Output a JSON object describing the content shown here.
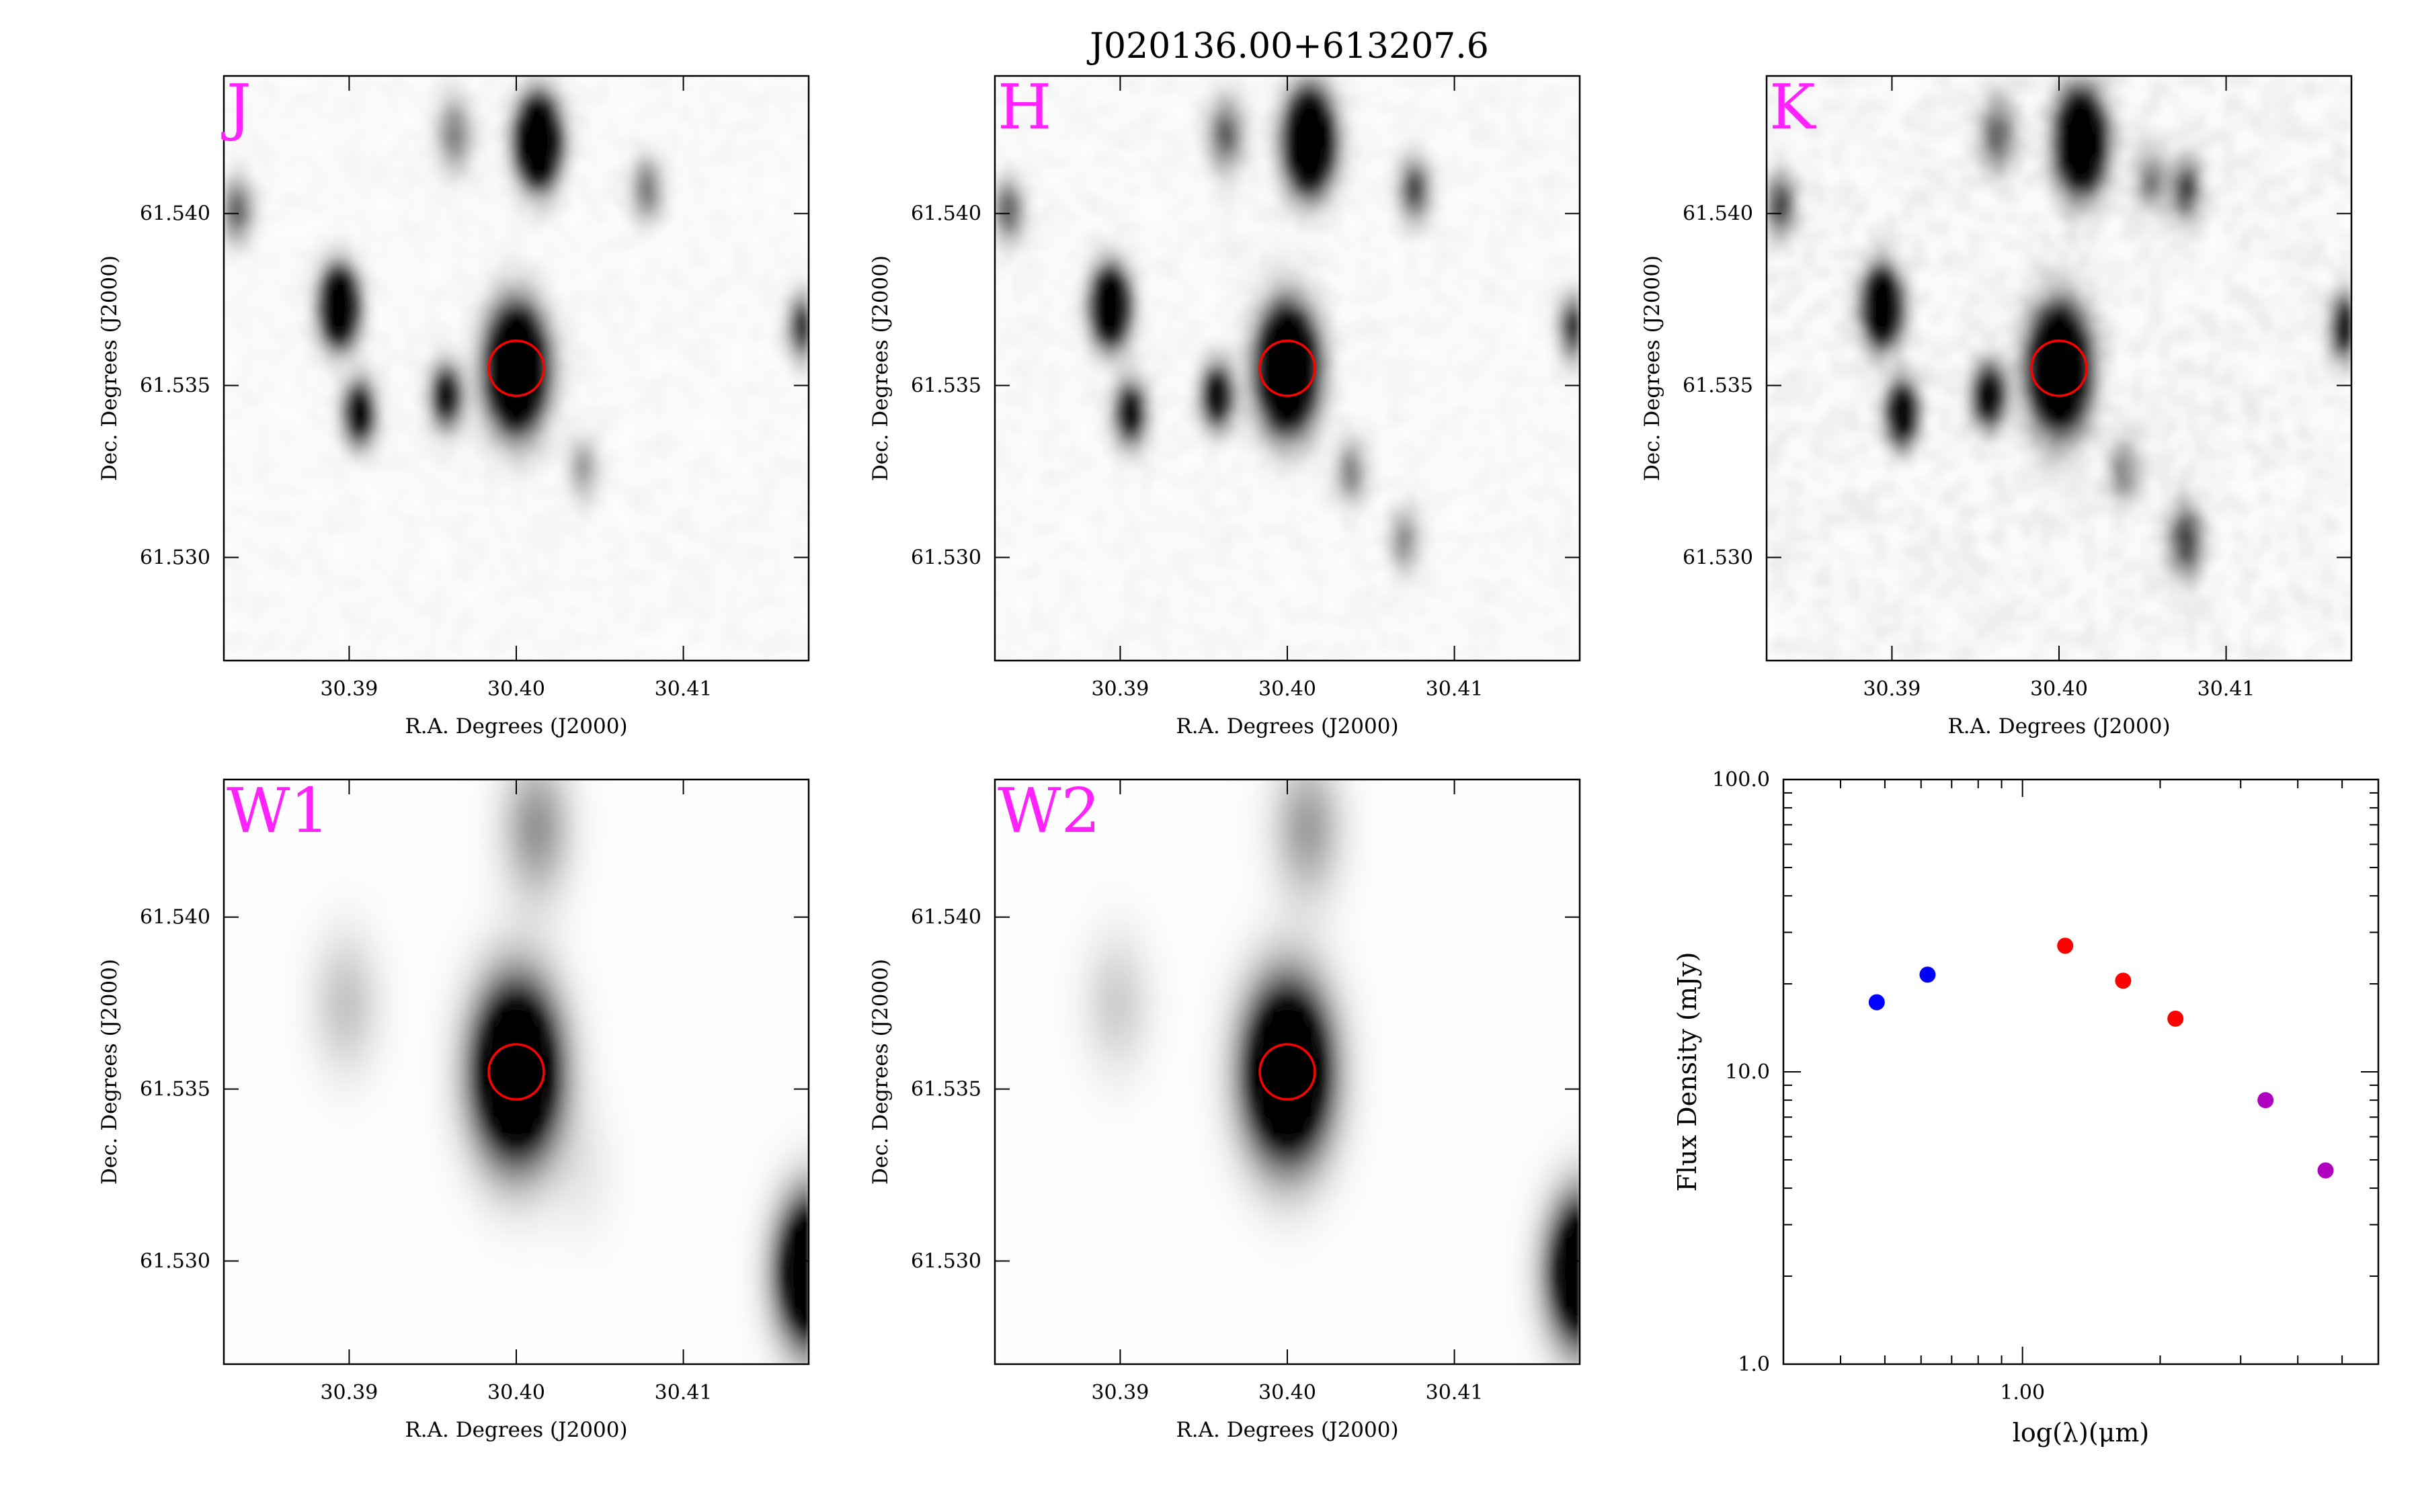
{
  "figure_title": "J020136.00+613207.6",
  "stamp_axes": {
    "xlabel": "R.A. Degrees (J2000)",
    "ylabel": "Dec. Degrees (J2000)",
    "x_ticks": [
      "30.39",
      "30.40",
      "30.41"
    ],
    "y_ticks": [
      "61.540",
      "61.535",
      "61.530"
    ],
    "xlim": [
      30.3825,
      30.4175
    ],
    "ylim": [
      61.527,
      61.544
    ],
    "target_circle_color": "#ff0000",
    "band_label_color": "#ff22ff"
  },
  "stamps": [
    {
      "band": "J",
      "row": 0,
      "col": 0,
      "style": "sharp",
      "noise": 0.07,
      "sources": [
        {
          "ra": 30.4,
          "dec": 61.5355,
          "peak": 1.0,
          "sigma": 0.0011
        },
        {
          "ra": 30.4013,
          "dec": 61.5421,
          "peak": 0.95,
          "sigma": 0.0008
        },
        {
          "ra": 30.3894,
          "dec": 61.5373,
          "peak": 0.85,
          "sigma": 0.0007
        },
        {
          "ra": 30.3906,
          "dec": 61.5342,
          "peak": 0.5,
          "sigma": 0.0006
        },
        {
          "ra": 30.3958,
          "dec": 61.5347,
          "peak": 0.45,
          "sigma": 0.0006
        },
        {
          "ra": 30.3833,
          "dec": 61.5401,
          "peak": 0.25,
          "sigma": 0.0006
        },
        {
          "ra": 30.3963,
          "dec": 61.5423,
          "peak": 0.2,
          "sigma": 0.0007
        },
        {
          "ra": 30.4078,
          "dec": 61.5407,
          "peak": 0.22,
          "sigma": 0.0006
        },
        {
          "ra": 30.4172,
          "dec": 61.5367,
          "peak": 0.35,
          "sigma": 0.0006
        },
        {
          "ra": 30.404,
          "dec": 61.5326,
          "peak": 0.15,
          "sigma": 0.0006
        }
      ]
    },
    {
      "band": "H",
      "row": 0,
      "col": 1,
      "style": "sharp",
      "noise": 0.08,
      "sources": [
        {
          "ra": 30.4,
          "dec": 61.5355,
          "peak": 1.0,
          "sigma": 0.0011
        },
        {
          "ra": 30.4013,
          "dec": 61.5421,
          "peak": 0.95,
          "sigma": 0.0009
        },
        {
          "ra": 30.3894,
          "dec": 61.5373,
          "peak": 0.85,
          "sigma": 0.0007
        },
        {
          "ra": 30.3906,
          "dec": 61.5342,
          "peak": 0.45,
          "sigma": 0.0006
        },
        {
          "ra": 30.3958,
          "dec": 61.5347,
          "peak": 0.5,
          "sigma": 0.0006
        },
        {
          "ra": 30.3833,
          "dec": 61.5401,
          "peak": 0.25,
          "sigma": 0.0006
        },
        {
          "ra": 30.3963,
          "dec": 61.5423,
          "peak": 0.25,
          "sigma": 0.0007
        },
        {
          "ra": 30.4076,
          "dec": 61.5407,
          "peak": 0.3,
          "sigma": 0.0006
        },
        {
          "ra": 30.4172,
          "dec": 61.5367,
          "peak": 0.35,
          "sigma": 0.0006
        },
        {
          "ra": 30.4038,
          "dec": 61.5325,
          "peak": 0.2,
          "sigma": 0.0006
        },
        {
          "ra": 30.407,
          "dec": 61.5305,
          "peak": 0.18,
          "sigma": 0.0006
        }
      ]
    },
    {
      "band": "K",
      "row": 0,
      "col": 2,
      "style": "sharp",
      "noise": 0.14,
      "sources": [
        {
          "ra": 30.4,
          "dec": 61.5355,
          "peak": 1.0,
          "sigma": 0.0011
        },
        {
          "ra": 30.4013,
          "dec": 61.5421,
          "peak": 0.95,
          "sigma": 0.0009
        },
        {
          "ra": 30.3894,
          "dec": 61.5373,
          "peak": 0.85,
          "sigma": 0.0007
        },
        {
          "ra": 30.3906,
          "dec": 61.5342,
          "peak": 0.6,
          "sigma": 0.0006
        },
        {
          "ra": 30.3958,
          "dec": 61.5347,
          "peak": 0.55,
          "sigma": 0.0006
        },
        {
          "ra": 30.3833,
          "dec": 61.5403,
          "peak": 0.3,
          "sigma": 0.0006
        },
        {
          "ra": 30.3963,
          "dec": 61.5423,
          "peak": 0.25,
          "sigma": 0.0007
        },
        {
          "ra": 30.4076,
          "dec": 61.5407,
          "peak": 0.3,
          "sigma": 0.0006
        },
        {
          "ra": 30.4055,
          "dec": 61.541,
          "peak": 0.2,
          "sigma": 0.0006
        },
        {
          "ra": 30.4172,
          "dec": 61.5367,
          "peak": 0.45,
          "sigma": 0.0006
        },
        {
          "ra": 30.4076,
          "dec": 61.5305,
          "peak": 0.3,
          "sigma": 0.0007
        },
        {
          "ra": 30.4038,
          "dec": 61.5325,
          "peak": 0.2,
          "sigma": 0.0006
        }
      ]
    },
    {
      "band": "W1",
      "row": 1,
      "col": 0,
      "style": "smooth",
      "noise": 0.0,
      "sources": [
        {
          "ra": 30.4,
          "dec": 61.5355,
          "peak": 1.0,
          "sigma": 0.0017
        },
        {
          "ra": 30.4012,
          "dec": 61.5426,
          "peak": 0.22,
          "sigma": 0.0014
        },
        {
          "ra": 30.3898,
          "dec": 61.5375,
          "peak": 0.12,
          "sigma": 0.0014
        },
        {
          "ra": 30.4178,
          "dec": 61.5297,
          "peak": 1.0,
          "sigma": 0.0014
        },
        {
          "ra": 30.404,
          "dec": 61.5326,
          "peak": 0.04,
          "sigma": 0.0014
        }
      ]
    },
    {
      "band": "W2",
      "row": 1,
      "col": 1,
      "style": "smooth",
      "noise": 0.0,
      "sources": [
        {
          "ra": 30.4,
          "dec": 61.5355,
          "peak": 1.0,
          "sigma": 0.0017
        },
        {
          "ra": 30.4012,
          "dec": 61.5426,
          "peak": 0.2,
          "sigma": 0.0014
        },
        {
          "ra": 30.3898,
          "dec": 61.5375,
          "peak": 0.1,
          "sigma": 0.0014
        },
        {
          "ra": 30.4178,
          "dec": 61.5297,
          "peak": 0.95,
          "sigma": 0.0014
        }
      ]
    }
  ],
  "chart_data": {
    "type": "scatter",
    "xlabel": "log(λ)(μm)",
    "ylabel": "Flux Density (mJy)",
    "xscale": "log",
    "yscale": "log",
    "xlim": [
      0.3,
      6.0
    ],
    "ylim": [
      1.0,
      100.0
    ],
    "x_tick_labels": [
      "1.00"
    ],
    "y_tick_labels": [
      "1.0",
      "10.0",
      "100.0"
    ],
    "series": [
      {
        "color": "#0000ff",
        "x": [
          0.48,
          0.62
        ],
        "y": [
          17.3,
          21.5
        ]
      },
      {
        "color": "#ff0000",
        "x": [
          1.24,
          1.66,
          2.16
        ],
        "y": [
          27.0,
          20.5,
          15.2
        ]
      },
      {
        "color": "#b000c0",
        "x": [
          3.4,
          4.6
        ],
        "y": [
          8.0,
          4.6
        ]
      }
    ]
  }
}
